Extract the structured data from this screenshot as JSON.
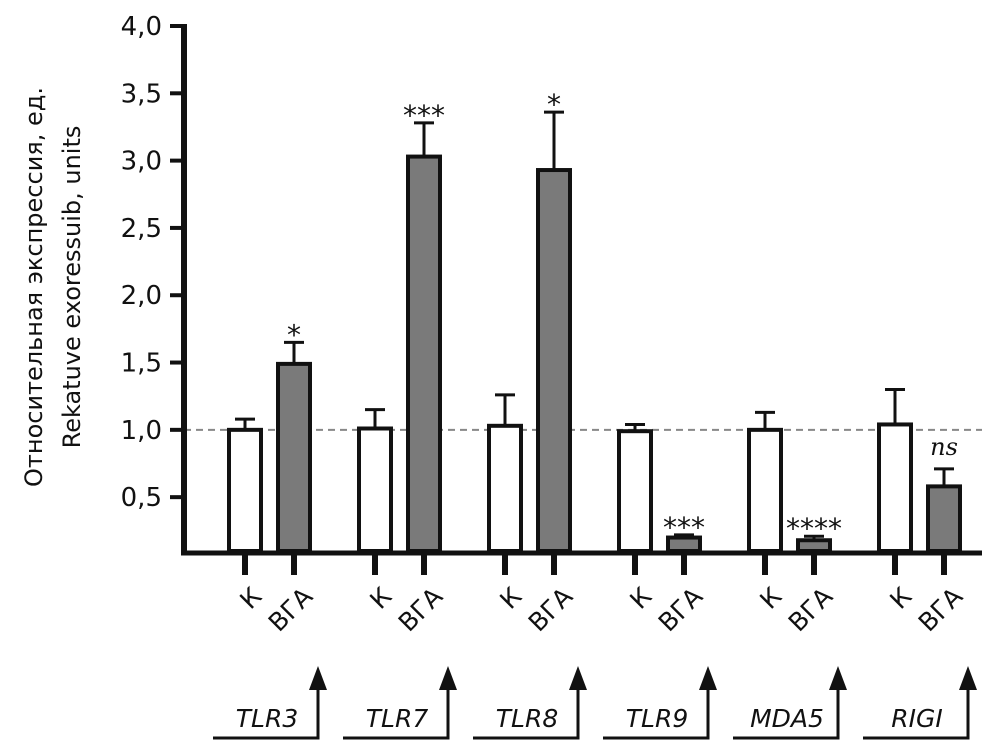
{
  "chart_data": {
    "type": "bar",
    "ylabel_ru": "Относительная экспрессия, ед.",
    "ylabel_en": "Rekatuve exoressuib, units",
    "ylim": [
      0.1,
      4.0
    ],
    "yticks": [
      "0,5",
      "1,0",
      "1,5",
      "2,0",
      "2,5",
      "3,0",
      "3,5",
      "4,0"
    ],
    "ytick_values": [
      0.5,
      1.0,
      1.5,
      2.0,
      2.5,
      3.0,
      3.5,
      4.0
    ],
    "reference_line": 1.0,
    "bar_labels": [
      "К",
      "ВГА"
    ],
    "colors": {
      "control": "#ffffff",
      "treated": "#7a7a7a",
      "ref_line": "#888888"
    },
    "groups": [
      {
        "gene": "TLR3",
        "values": [
          1.0,
          1.49
        ],
        "errors": [
          0.08,
          0.16
        ],
        "significance": "*"
      },
      {
        "gene": "TLR7",
        "values": [
          1.01,
          3.03
        ],
        "errors": [
          0.14,
          0.25
        ],
        "significance": "***"
      },
      {
        "gene": "TLR8",
        "values": [
          1.03,
          2.93
        ],
        "errors": [
          0.23,
          0.43
        ],
        "significance": "*"
      },
      {
        "gene": "TLR9",
        "values": [
          0.99,
          0.2
        ],
        "errors": [
          0.05,
          0.02
        ],
        "significance": "***"
      },
      {
        "gene": "MDA5",
        "values": [
          1.0,
          0.18
        ],
        "errors": [
          0.13,
          0.03
        ],
        "significance": "****"
      },
      {
        "gene": "RIGI",
        "values": [
          1.04,
          0.58
        ],
        "errors": [
          0.26,
          0.13
        ],
        "significance": "ns"
      }
    ]
  }
}
